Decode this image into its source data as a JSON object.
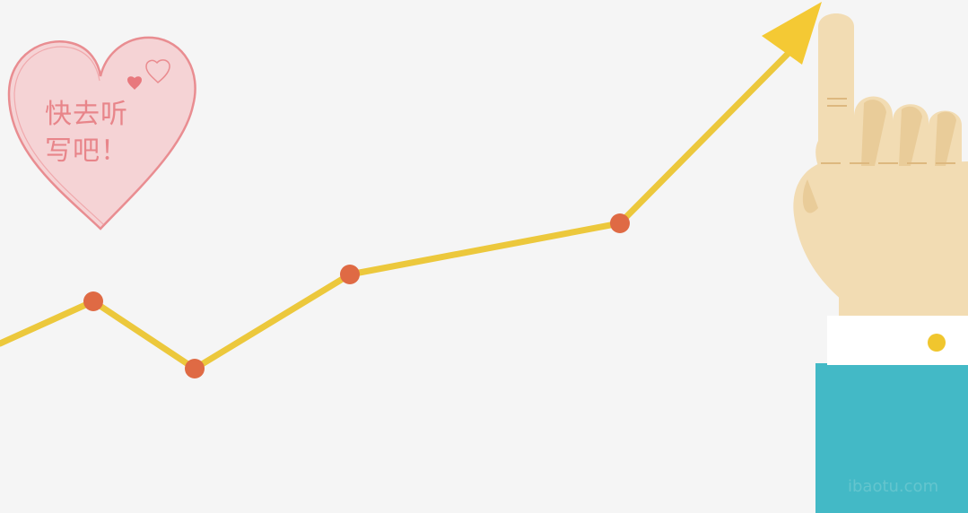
{
  "heart_badge": {
    "line1": "快去听",
    "line2": "写吧！"
  },
  "colors": {
    "background": "#f5f5f5",
    "trend_line": "#ecc83c",
    "arrow_head": "#f4c934",
    "data_point": "#df6a44",
    "heart_fill": "#f5d3d5",
    "heart_stroke": "#e98d91",
    "skin": "#f2dcb3",
    "skin_shadow": "#e6c58f",
    "cuff": "#ffffff",
    "button": "#f0c62e",
    "sleeve": "#43b9c6"
  },
  "illustration": {
    "subject": "rising line graph with arrow and pointing hand",
    "hand": "pointing-up-hand-icon"
  }
}
